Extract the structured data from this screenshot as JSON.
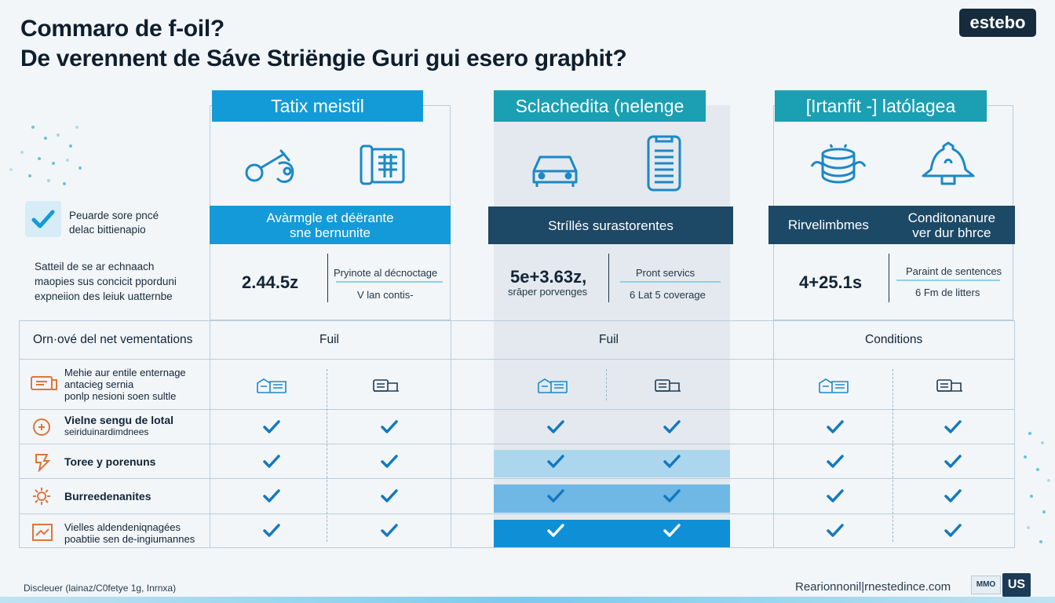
{
  "title": {
    "line1": "Commaro de f-oil?",
    "line2": "De verennent de Sáve Striëngie Guri gui esero graphit?"
  },
  "brand": {
    "top_logo": "estebo",
    "footer_url": "Rearionnonil|rnestedince.com",
    "badge_small": "MMO",
    "badge_us": "US"
  },
  "left_panel": {
    "check_label_line1": "Peuarde sore pncé",
    "check_label_line2": "delac bittienapio",
    "desc_line1": "Satteil de se ar echnaach",
    "desc_line2": "maopies sus concicit pporduni",
    "desc_line3": "expneiion des leiuk uatternbe"
  },
  "columns": [
    {
      "header": "Tatix meistil",
      "icons": [
        "wrench-key-icon",
        "document-phone-icon"
      ],
      "band_line1": "Avàrmgle et déërante",
      "band_line2": "sne bernunite",
      "value": "2.44.5z",
      "side_line1": "Pryinote al décnoctage",
      "side_line2": "V lan contis-",
      "row_header": "Fuil"
    },
    {
      "header": "Sclachedita (nelenge",
      "icons": [
        "car-icon",
        "document-icon"
      ],
      "band_line1": "Stríllés surastorentes",
      "value": "5e+3.63z,",
      "value_sub": "srāper porvenges",
      "side_line1": "Pront servics",
      "side_line2": "6 Lat 5 coverage",
      "row_header": "Fuil"
    },
    {
      "header": "[Irtanfit -] latólagea",
      "icons": [
        "coins-stack-icon",
        "bell-icon"
      ],
      "band_left": "Rirvelimbmes",
      "band_right_line1": "Conditonanure",
      "band_right_line2": "ver dur bhrce",
      "value": "4+25.1s",
      "side_line1": "Paraint de sentences",
      "side_line2": "6 Fm de litters",
      "row_header": "Conditions"
    }
  ],
  "table": {
    "header_label": "Orn·ové del net vementations",
    "rows": [
      {
        "icon": "monitor-icon",
        "label_line1": "Mehie aur entile enternage",
        "label_line2": "antacieg sernia",
        "label_line3": "ponlp nesioni soen sultle"
      },
      {
        "icon": "compass-icon",
        "label_line1": "Vielne sengu de lotal",
        "label_line2": "seiriduinardimdnees"
      },
      {
        "icon": "hand-icon",
        "label_line1": "Toree y porenuns"
      },
      {
        "icon": "gear-icon",
        "label_line1": "Burreedenanites"
      },
      {
        "icon": "chart-icon",
        "label_line1": "Vielles aldendeniqnagées",
        "label_line2": "poabtiie sen de-ingiumannes"
      }
    ]
  },
  "footer": {
    "disclaimer": "Discleuer (lainaz/C0fetye 1g, Inrnxa)"
  },
  "colors": {
    "accent_blue": "#139bd8",
    "accent_teal": "#1b9fb2",
    "navy": "#1d4866",
    "highlight_dark": "#0f8fd6"
  }
}
